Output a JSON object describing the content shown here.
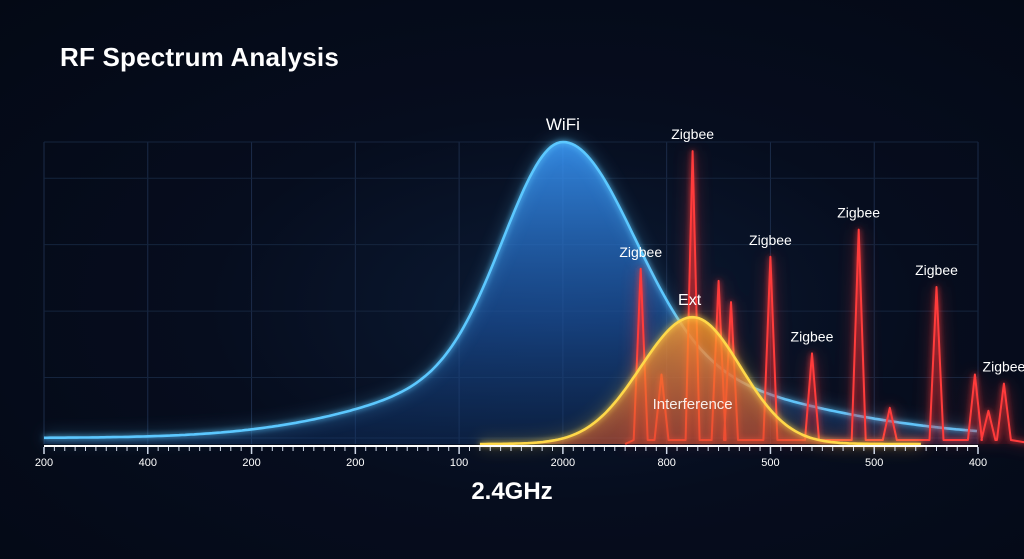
{
  "chart_data": {
    "type": "area",
    "title": "RF Spectrum Analysis",
    "xlabel": "2.4GHz",
    "ylabel": "",
    "x_tick_labels": [
      "200",
      "400",
      "200",
      "200",
      "100",
      "2000",
      "800",
      "500",
      "500",
      "400"
    ],
    "grid": true,
    "legend": "none",
    "series": [
      {
        "name": "WiFi",
        "color": "#5cc8ff",
        "shape": "gaussian",
        "center_tick_index": 5.0,
        "peak_level": 1.0,
        "baseline_level": 0.02
      },
      {
        "name": "Ext",
        "color": "#ffd84a",
        "shape": "gaussian",
        "center_tick_index": 6.25,
        "peak_level": 0.42
      },
      {
        "name": "Zigbee",
        "color": "#ff3b3b",
        "shape": "spikes",
        "peaks": [
          {
            "tick_index": 5.75,
            "level": 0.58,
            "label": "Zigbee"
          },
          {
            "tick_index": 6.25,
            "level": 0.97,
            "label": "Zigbee"
          },
          {
            "tick_index": 7.0,
            "level": 0.62,
            "label": "Zigbee"
          },
          {
            "tick_index": 7.4,
            "level": 0.3,
            "label": "Zigbee"
          },
          {
            "tick_index": 7.85,
            "level": 0.71,
            "label": "Zigbee"
          },
          {
            "tick_index": 8.6,
            "level": 0.52,
            "label": "Zigbee"
          },
          {
            "tick_index": 9.25,
            "level": 0.2,
            "label": "Zigbee"
          }
        ],
        "minor_peaks": [
          {
            "tick_index": 5.95,
            "level": 0.23
          },
          {
            "tick_index": 6.5,
            "level": 0.54
          },
          {
            "tick_index": 6.62,
            "level": 0.47
          },
          {
            "tick_index": 8.15,
            "level": 0.12
          },
          {
            "tick_index": 8.97,
            "level": 0.23
          },
          {
            "tick_index": 9.1,
            "level": 0.11
          }
        ]
      }
    ],
    "annotations": [
      {
        "text": "WiFi",
        "series": "WiFi"
      },
      {
        "text": "Ext",
        "series": "Ext"
      },
      {
        "text": "Interference",
        "series": "Ext"
      }
    ]
  }
}
